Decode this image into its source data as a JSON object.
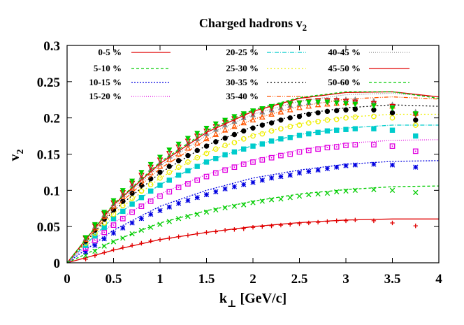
{
  "chart_data": {
    "type": "scatter",
    "title": {
      "main": "Charged hadrons v",
      "sub": "2"
    },
    "xlabel": {
      "main": "k",
      "sub": "⊥",
      "rest": " [GeV/c]"
    },
    "ylabel": {
      "main": "v",
      "sub": "2"
    },
    "xlim": [
      0,
      4
    ],
    "ylim": [
      0,
      0.3
    ],
    "x_ticks": [
      "0",
      "0.5",
      "1",
      "1.5",
      "2",
      "2.5",
      "3",
      "3.5",
      "4"
    ],
    "y_ticks": [
      "0",
      "0.05",
      "0.1",
      "0.15",
      "0.2",
      "0.25",
      "0.3"
    ],
    "grid": false,
    "legend_position": "top",
    "data_x": [
      0.2,
      0.3,
      0.4,
      0.5,
      0.6,
      0.7,
      0.8,
      0.9,
      1.0,
      1.1,
      1.2,
      1.3,
      1.4,
      1.5,
      1.6,
      1.7,
      1.8,
      1.9,
      2.0,
      2.1,
      2.2,
      2.3,
      2.4,
      2.5,
      2.6,
      2.7,
      2.8,
      2.9,
      3.0,
      3.1,
      3.3,
      3.5,
      3.75
    ],
    "series": [
      {
        "name": "0-5 %",
        "color": "#e00000",
        "dash": "",
        "marker": "plus",
        "fit": [
          [
            0,
            0
          ],
          [
            0.5,
            0.0175
          ],
          [
            1,
            0.032
          ],
          [
            1.5,
            0.042
          ],
          [
            2,
            0.05
          ],
          [
            2.5,
            0.0555
          ],
          [
            3,
            0.059
          ],
          [
            3.5,
            0.0605
          ],
          [
            4,
            0.0605
          ]
        ],
        "data": [
          0.005,
          0.01,
          0.014,
          0.018,
          0.021,
          0.024,
          0.027,
          0.03,
          0.032,
          0.034,
          0.036,
          0.038,
          0.04,
          0.042,
          0.043,
          0.045,
          0.046,
          0.047,
          0.049,
          0.05,
          0.051,
          0.052,
          0.053,
          0.054,
          0.055,
          0.056,
          0.057,
          0.058,
          0.058,
          0.059,
          0.058,
          0.055,
          0.051
        ]
      },
      {
        "name": "5-10 %",
        "color": "#00cc00",
        "dash": "4,3",
        "marker": "cross",
        "fit": [
          [
            0,
            0
          ],
          [
            0.5,
            0.03
          ],
          [
            1,
            0.055
          ],
          [
            1.5,
            0.072
          ],
          [
            2,
            0.085
          ],
          [
            2.5,
            0.095
          ],
          [
            3,
            0.101
          ],
          [
            3.5,
            0.105
          ],
          [
            4,
            0.106
          ]
        ],
        "data": [
          0.01,
          0.016,
          0.023,
          0.029,
          0.034,
          0.04,
          0.045,
          0.049,
          0.053,
          0.057,
          0.061,
          0.064,
          0.067,
          0.07,
          0.073,
          0.076,
          0.078,
          0.08,
          0.083,
          0.085,
          0.087,
          0.088,
          0.09,
          0.092,
          0.094,
          0.095,
          0.096,
          0.098,
          0.099,
          0.1,
          0.101,
          0.1,
          0.097
        ]
      },
      {
        "name": "10-15 %",
        "color": "#0000e0",
        "dash": "2,2",
        "marker": "star",
        "fit": [
          [
            0,
            0
          ],
          [
            0.5,
            0.045
          ],
          [
            1,
            0.078
          ],
          [
            1.5,
            0.1
          ],
          [
            2,
            0.117
          ],
          [
            2.5,
            0.128
          ],
          [
            3,
            0.136
          ],
          [
            3.5,
            0.14
          ],
          [
            4,
            0.141
          ]
        ],
        "data": [
          0.015,
          0.024,
          0.033,
          0.041,
          0.048,
          0.055,
          0.061,
          0.067,
          0.072,
          0.077,
          0.082,
          0.086,
          0.09,
          0.094,
          0.098,
          0.102,
          0.105,
          0.108,
          0.111,
          0.114,
          0.117,
          0.119,
          0.121,
          0.124,
          0.126,
          0.128,
          0.13,
          0.132,
          0.134,
          0.135,
          0.136,
          0.135,
          0.132
        ]
      },
      {
        "name": "15-20 %",
        "color": "#e000e0",
        "dash": "1,2",
        "marker": "square",
        "fit": [
          [
            0,
            0
          ],
          [
            0.5,
            0.055
          ],
          [
            1,
            0.095
          ],
          [
            1.5,
            0.122
          ],
          [
            2,
            0.142
          ],
          [
            2.5,
            0.156
          ],
          [
            3,
            0.165
          ],
          [
            3.5,
            0.169
          ],
          [
            4,
            0.17
          ]
        ],
        "data": [
          0.02,
          0.031,
          0.042,
          0.052,
          0.061,
          0.07,
          0.078,
          0.085,
          0.092,
          0.098,
          0.104,
          0.109,
          0.114,
          0.119,
          0.124,
          0.128,
          0.132,
          0.136,
          0.139,
          0.142,
          0.145,
          0.148,
          0.15,
          0.153,
          0.155,
          0.157,
          0.159,
          0.16,
          0.162,
          0.163,
          0.163,
          0.161,
          0.154
        ]
      },
      {
        "name": "20-25 %",
        "color": "#00cccc",
        "dash": "6,2,1,2",
        "marker": "fsquare",
        "fit": [
          [
            0,
            0
          ],
          [
            0.5,
            0.063
          ],
          [
            1,
            0.108
          ],
          [
            1.5,
            0.14
          ],
          [
            2,
            0.162
          ],
          [
            2.5,
            0.177
          ],
          [
            3,
            0.186
          ],
          [
            3.5,
            0.19
          ],
          [
            4,
            0.19
          ]
        ],
        "data": [
          0.024,
          0.037,
          0.049,
          0.061,
          0.071,
          0.081,
          0.09,
          0.099,
          0.107,
          0.114,
          0.121,
          0.127,
          0.133,
          0.139,
          0.144,
          0.149,
          0.153,
          0.157,
          0.161,
          0.164,
          0.168,
          0.171,
          0.173,
          0.176,
          0.178,
          0.18,
          0.182,
          0.183,
          0.184,
          0.185,
          0.185,
          0.183,
          0.175
        ]
      },
      {
        "name": "25-30 %",
        "color": "#eeee00",
        "dash": "2,3",
        "marker": "circle",
        "fit": [
          [
            0,
            0
          ],
          [
            0.5,
            0.068
          ],
          [
            1,
            0.117
          ],
          [
            1.5,
            0.152
          ],
          [
            2,
            0.176
          ],
          [
            2.5,
            0.192
          ],
          [
            3,
            0.201
          ],
          [
            3.5,
            0.205
          ],
          [
            4,
            0.205
          ]
        ],
        "data": [
          0.027,
          0.041,
          0.055,
          0.067,
          0.079,
          0.089,
          0.099,
          0.108,
          0.117,
          0.125,
          0.132,
          0.139,
          0.145,
          0.151,
          0.157,
          0.162,
          0.166,
          0.171,
          0.175,
          0.178,
          0.182,
          0.185,
          0.188,
          0.19,
          0.193,
          0.195,
          0.197,
          0.198,
          0.2,
          0.201,
          0.202,
          0.2,
          0.19
        ]
      },
      {
        "name": "30-35 %",
        "color": "#000000",
        "dash": "2,3",
        "marker": "fcircle",
        "fit": [
          [
            0,
            0
          ],
          [
            0.5,
            0.072
          ],
          [
            1,
            0.124
          ],
          [
            1.5,
            0.162
          ],
          [
            2,
            0.188
          ],
          [
            2.5,
            0.205
          ],
          [
            3,
            0.214
          ],
          [
            3.5,
            0.218
          ],
          [
            4,
            0.216
          ]
        ],
        "data": [
          0.03,
          0.045,
          0.06,
          0.073,
          0.085,
          0.096,
          0.107,
          0.116,
          0.125,
          0.133,
          0.141,
          0.148,
          0.155,
          0.161,
          0.167,
          0.172,
          0.177,
          0.182,
          0.186,
          0.19,
          0.193,
          0.197,
          0.2,
          0.202,
          0.205,
          0.207,
          0.209,
          0.21,
          0.211,
          0.212,
          0.211,
          0.207,
          0.197
        ]
      },
      {
        "name": "35-40 %",
        "color": "#ff5500",
        "dash": "6,2,1,2,1,2",
        "marker": "triangle",
        "fit": [
          [
            0,
            0
          ],
          [
            0.5,
            0.075
          ],
          [
            1,
            0.13
          ],
          [
            1.5,
            0.17
          ],
          [
            2,
            0.198
          ],
          [
            2.5,
            0.216
          ],
          [
            3,
            0.226
          ],
          [
            3.5,
            0.229
          ],
          [
            4,
            0.226
          ]
        ],
        "data": [
          0.032,
          0.048,
          0.064,
          0.078,
          0.091,
          0.103,
          0.114,
          0.124,
          0.133,
          0.142,
          0.15,
          0.158,
          0.165,
          0.171,
          0.177,
          0.183,
          0.188,
          0.193,
          0.197,
          0.201,
          0.205,
          0.208,
          0.211,
          0.214,
          0.216,
          0.218,
          0.219,
          0.22,
          0.221,
          0.222,
          0.22,
          0.216,
          0.206
        ]
      },
      {
        "name": "40-45 %",
        "color": "#888888",
        "dash": "1,2",
        "marker": "ftriangle",
        "fit": [
          [
            0,
            0
          ],
          [
            0.5,
            0.078
          ],
          [
            1,
            0.134
          ],
          [
            1.5,
            0.176
          ],
          [
            2,
            0.205
          ],
          [
            2.5,
            0.223
          ],
          [
            3,
            0.232
          ],
          [
            3.5,
            0.234
          ],
          [
            4,
            0.229
          ]
        ],
        "data": [
          0.033,
          0.05,
          0.066,
          0.081,
          0.094,
          0.107,
          0.118,
          0.129,
          0.138,
          0.147,
          0.156,
          0.164,
          0.171,
          0.178,
          0.184,
          0.19,
          0.195,
          0.2,
          0.204,
          0.208,
          0.211,
          0.214,
          0.217,
          0.219,
          0.221,
          0.223,
          0.224,
          0.225,
          0.225,
          0.225,
          0.223,
          0.218,
          0.208
        ]
      },
      {
        "name": "45-50 %",
        "color": "#e00000",
        "dash": "",
        "marker": "dtriangle",
        "fit": [
          [
            0,
            0
          ],
          [
            0.5,
            0.08
          ],
          [
            1,
            0.137
          ],
          [
            1.5,
            0.18
          ],
          [
            2,
            0.209
          ],
          [
            2.5,
            0.227
          ],
          [
            3,
            0.235
          ],
          [
            3.5,
            0.236
          ],
          [
            4,
            0.229
          ]
        ],
        "data": [
          0.034,
          0.051,
          0.068,
          0.083,
          0.097,
          0.11,
          0.121,
          0.132,
          0.142,
          0.151,
          0.16,
          0.168,
          0.175,
          0.182,
          0.188,
          0.194,
          0.199,
          0.203,
          0.207,
          0.211,
          0.214,
          0.217,
          0.219,
          0.221,
          0.223,
          0.224,
          0.224,
          0.224,
          0.223,
          0.222,
          0.22,
          0.216,
          0.205
        ]
      },
      {
        "name": "50-60 %",
        "color": "#00cc00",
        "dash": "4,3",
        "marker": "fdtriangle",
        "fit": [
          [
            0,
            0
          ],
          [
            0.5,
            0.081
          ],
          [
            1,
            0.139
          ],
          [
            1.5,
            0.182
          ],
          [
            2,
            0.211
          ],
          [
            2.5,
            0.228
          ],
          [
            3,
            0.236
          ],
          [
            3.5,
            0.236
          ],
          [
            4,
            0.227
          ]
        ],
        "data": [
          0.035,
          0.053,
          0.07,
          0.086,
          0.1,
          0.113,
          0.125,
          0.136,
          0.146,
          0.156,
          0.164,
          0.172,
          0.179,
          0.186,
          0.192,
          0.197,
          0.202,
          0.206,
          0.21,
          0.213,
          0.216,
          0.218,
          0.22,
          0.221,
          0.222,
          0.222,
          0.222,
          0.221,
          0.22,
          0.219,
          0.217,
          0.214,
          0.206
        ]
      }
    ]
  }
}
